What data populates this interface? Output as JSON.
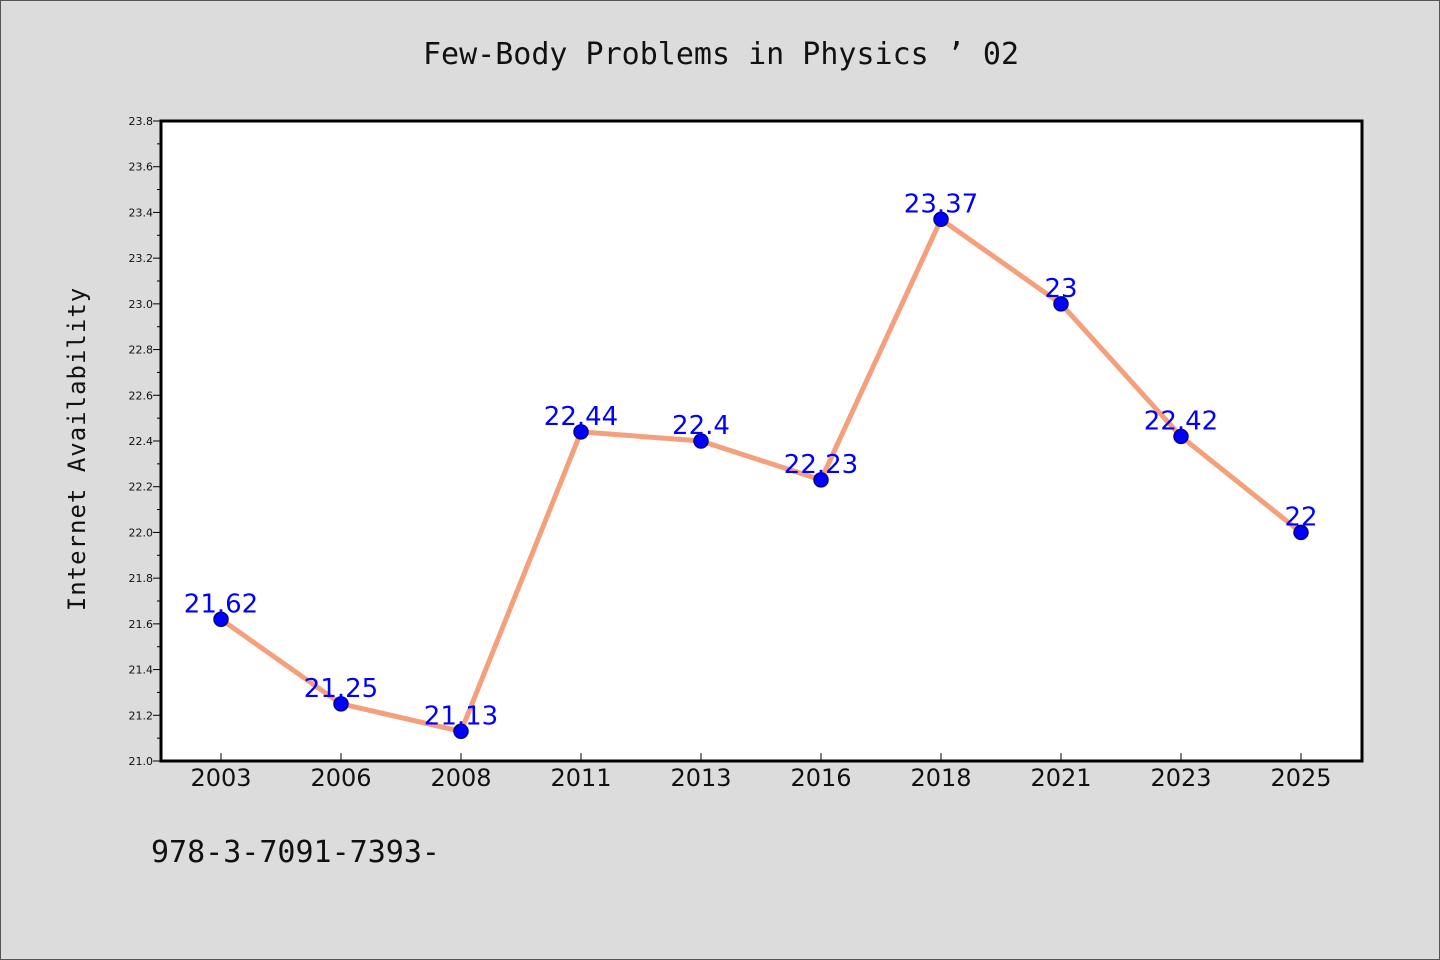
{
  "title": "Few-Body Problems in Physics ’ 02",
  "footer": "978-3-7091-7393-",
  "chart_data": {
    "type": "line",
    "title": "Few-Body Problems in Physics ’ 02",
    "xlabel": "",
    "ylabel": "Internet Availability",
    "categories": [
      "2003",
      "2006",
      "2008",
      "2011",
      "2013",
      "2016",
      "2018",
      "2021",
      "2023",
      "2025"
    ],
    "values": [
      21.62,
      21.25,
      21.13,
      22.44,
      22.4,
      22.23,
      23.37,
      23.0,
      22.42,
      22.0
    ],
    "data_labels": [
      "21.62",
      "21.25",
      "21.13",
      "22.44",
      "22.4",
      "22.23",
      "23.37",
      "23",
      "22.42",
      "22"
    ],
    "ylim": [
      21.0,
      23.8
    ],
    "yticks": [
      "21.0",
      "21.2",
      "21.4",
      "21.6",
      "21.8",
      "22.0",
      "22.2",
      "22.4",
      "22.6",
      "22.8",
      "23.0",
      "23.2",
      "23.4",
      "23.6",
      "23.8"
    ],
    "grid": false,
    "legend": "none",
    "colors": {
      "line": "#f4a07c",
      "marker": "#0000ff",
      "data_label": "#0000ff",
      "background": "#dcdcdc",
      "plot_area": "#ffffff"
    }
  }
}
